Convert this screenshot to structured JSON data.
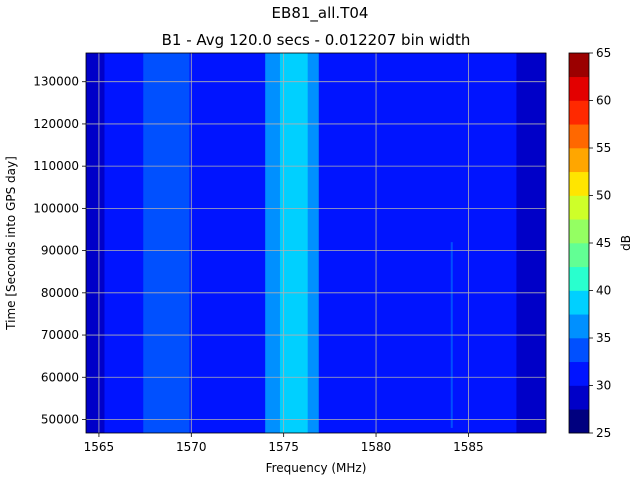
{
  "chart_data": {
    "type": "heatmap",
    "title": "EB81_all.T04",
    "subtitle": "B1 - Avg 120.0 secs - 0.012207 bin width",
    "xlabel": "Frequency (MHz)",
    "ylabel": "Time [Seconds into GPS day]",
    "colorbar_label": "dB",
    "xlim": [
      1564.3,
      1589.2
    ],
    "ylim": [
      46800,
      136800
    ],
    "xticks": [
      1565,
      1570,
      1575,
      1580,
      1585
    ],
    "yticks": [
      50000,
      60000,
      70000,
      80000,
      90000,
      100000,
      110000,
      120000,
      130000
    ],
    "grid": true,
    "colorbar": {
      "min": 25,
      "max": 65,
      "step": 2.5,
      "ticks": [
        25,
        30,
        35,
        40,
        45,
        50,
        55,
        60,
        65
      ],
      "levels": [
        "#00007f",
        "#0000c8",
        "#0014ff",
        "#0050ff",
        "#0090ff",
        "#00d0ff",
        "#29ffce",
        "#62ff94",
        "#94ff62",
        "#ceff29",
        "#ffe500",
        "#ffa600",
        "#ff6800",
        "#ff2900",
        "#e30000",
        "#9b0000"
      ]
    },
    "bands": [
      {
        "from": 1564.3,
        "to": 1565.3,
        "level_db": 29.5
      },
      {
        "from": 1565.3,
        "to": 1567.4,
        "level_db": 31.5
      },
      {
        "from": 1567.4,
        "to": 1569.9,
        "level_db": 34.0
      },
      {
        "from": 1569.9,
        "to": 1574.0,
        "level_db": 31.5
      },
      {
        "from": 1574.0,
        "to": 1574.8,
        "level_db": 36.5
      },
      {
        "from": 1574.8,
        "to": 1576.3,
        "level_db": 39.0
      },
      {
        "from": 1576.3,
        "to": 1576.9,
        "level_db": 36.5
      },
      {
        "from": 1576.9,
        "to": 1587.6,
        "level_db": 31.5
      },
      {
        "from": 1587.6,
        "to": 1589.2,
        "level_db": 29.5
      }
    ],
    "spurs": [
      {
        "freq": 1584.1,
        "from_time": 48000,
        "to_time": 92000,
        "level_db": 34.0
      }
    ]
  }
}
